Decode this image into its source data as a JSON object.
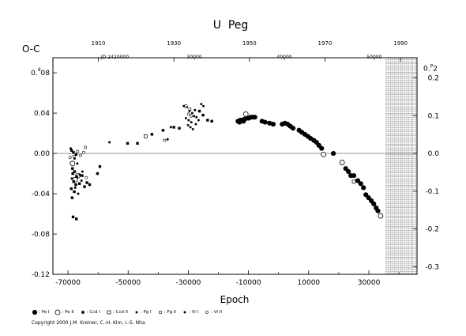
{
  "chart_data": {
    "type": "scatter",
    "title": "U  Peg",
    "ylabel": "O-C",
    "ylabel_unit": "d",
    "xlabel": "Epoch",
    "xlim": [
      -75000,
      46000
    ],
    "ylim": [
      -0.12,
      0.095
    ],
    "x_ticks": [
      "-70000",
      "-50000",
      "-30000",
      "-10000",
      "10000",
      "30000"
    ],
    "x_tick_values": [
      -70000,
      -50000,
      -30000,
      -10000,
      10000,
      30000
    ],
    "y_ticks": [
      "0.08",
      "0.04",
      "0.00",
      "-0.04",
      "-0.08",
      "-0.12"
    ],
    "y_tick_values": [
      0.08,
      0.04,
      0.0,
      -0.04,
      -0.08,
      -0.12
    ],
    "y_first_label_main": "0.",
    "y_first_label_sup": "d",
    "y_first_label_rest": "08",
    "top_year_ticks": [
      "1910",
      "1930",
      "1950",
      "1970",
      "1990"
    ],
    "top_year_epochs": [
      -59900,
      -34800,
      -9700,
      15400,
      40500
    ],
    "jd_label": "JD 2420000",
    "top_jd_ticks": [
      "30000",
      "40000",
      "50000"
    ],
    "top_jd_epochs": [
      -28000,
      1900,
      31800
    ],
    "right_scale_label_main": "0.",
    "right_scale_label_sup": "P",
    "right_scale_label_rest": "2",
    "right_ticks": [
      "0.2",
      "0.1",
      "0.0",
      "-0.1",
      "-0.2",
      "-0.3"
    ],
    "right_tick_values": [
      0.0749,
      0.0375,
      0.0,
      -0.0375,
      -0.0749,
      -0.1124
    ],
    "future_region_start": 35500,
    "series": [
      {
        "name": "Pe I",
        "symbol": "filled-circle-large",
        "points": [
          [
            -13500,
            0.032
          ],
          [
            -12700,
            0.033
          ],
          [
            -12000,
            0.033
          ],
          [
            -11300,
            0.034
          ],
          [
            -10600,
            0.035
          ],
          [
            -9900,
            0.035
          ],
          [
            -9300,
            0.036
          ],
          [
            -8600,
            0.036
          ],
          [
            -7900,
            0.036
          ],
          [
            -13000,
            0.031
          ],
          [
            -11700,
            0.032
          ],
          [
            -5500,
            0.032
          ],
          [
            -4500,
            0.031
          ],
          [
            -3000,
            0.03
          ],
          [
            -1800,
            0.029
          ],
          [
            1200,
            0.029
          ],
          [
            2100,
            0.03
          ],
          [
            3000,
            0.029
          ],
          [
            3900,
            0.027
          ],
          [
            4800,
            0.025
          ],
          [
            6800,
            0.023
          ],
          [
            7700,
            0.021
          ],
          [
            8700,
            0.019
          ],
          [
            9700,
            0.017
          ],
          [
            10600,
            0.015
          ],
          [
            11700,
            0.013
          ],
          [
            12600,
            0.011
          ],
          [
            13400,
            0.008
          ],
          [
            14300,
            0.005
          ],
          [
            18200,
            0.0
          ],
          [
            22300,
            -0.015
          ],
          [
            23200,
            -0.018
          ],
          [
            24000,
            -0.022
          ],
          [
            25000,
            -0.022
          ],
          [
            26300,
            -0.027
          ],
          [
            27300,
            -0.03
          ],
          [
            28200,
            -0.034
          ],
          [
            29000,
            -0.041
          ],
          [
            29900,
            -0.044
          ],
          [
            30800,
            -0.047
          ],
          [
            31600,
            -0.05
          ],
          [
            32400,
            -0.054
          ],
          [
            33000,
            -0.057
          ]
        ]
      },
      {
        "name": "Pe II",
        "symbol": "open-circle-large",
        "points": [
          [
            -10900,
            0.039
          ],
          [
            14900,
            -0.001
          ],
          [
            21100,
            -0.009
          ],
          [
            33900,
            -0.062
          ],
          [
            -68500,
            -0.01
          ],
          [
            -67600,
            -0.026
          ],
          [
            -66700,
            -0.022
          ]
        ]
      },
      {
        "name": "Ccd I",
        "symbol": "filled-square",
        "points": [
          [
            -68800,
            0.003
          ],
          [
            -68200,
            0.001
          ],
          [
            -67300,
            -0.001
          ],
          [
            -68500,
            -0.015
          ],
          [
            -67800,
            -0.018
          ],
          [
            -68400,
            -0.02
          ],
          [
            -67100,
            -0.023
          ],
          [
            -68100,
            -0.028
          ],
          [
            -67400,
            -0.031
          ],
          [
            -68900,
            -0.035
          ],
          [
            -67900,
            -0.038
          ],
          [
            -68600,
            -0.044
          ],
          [
            -68300,
            -0.063
          ],
          [
            -67200,
            -0.065
          ],
          [
            -66200,
            -0.03
          ],
          [
            -65300,
            -0.022
          ],
          [
            -64500,
            -0.033
          ],
          [
            -63700,
            -0.029
          ],
          [
            -62800,
            -0.031
          ],
          [
            -60200,
            -0.02
          ],
          [
            -59400,
            -0.013
          ],
          [
            -50200,
            0.01
          ],
          [
            -46900,
            0.01
          ],
          [
            -42100,
            0.019
          ],
          [
            -38400,
            0.023
          ],
          [
            -34800,
            0.026
          ],
          [
            -33000,
            0.025
          ],
          [
            -26300,
            0.042
          ],
          [
            -25100,
            0.038
          ],
          [
            -23600,
            0.033
          ],
          [
            -22200,
            0.032
          ]
        ]
      },
      {
        "name": "Ccd II",
        "symbol": "open-square",
        "points": [
          [
            -44200,
            0.017
          ],
          [
            25000,
            -0.028
          ]
        ]
      },
      {
        "name": "Pg I",
        "symbol": "small-filled",
        "points": [
          [
            -31500,
            0.047
          ],
          [
            -30500,
            0.046
          ],
          [
            -29600,
            0.042
          ],
          [
            -28700,
            0.04
          ],
          [
            -27800,
            0.043
          ],
          [
            -30800,
            0.035
          ],
          [
            -29900,
            0.033
          ],
          [
            -29000,
            0.031
          ],
          [
            -28100,
            0.037
          ],
          [
            -27300,
            0.036
          ],
          [
            -30100,
            0.028
          ],
          [
            -29300,
            0.026
          ],
          [
            -28500,
            0.024
          ],
          [
            -27500,
            0.029
          ],
          [
            -26600,
            0.033
          ],
          [
            -25700,
            0.049
          ],
          [
            -25000,
            0.047
          ]
        ]
      },
      {
        "name": "Pg II",
        "symbol": "small-open-square",
        "points": [
          [
            -30800,
            0.047
          ],
          [
            -29500,
            0.044
          ]
        ]
      },
      {
        "name": "Vi I",
        "symbol": "small-filled-dot",
        "points": [
          [
            -69100,
            0.005
          ],
          [
            -67800,
            -0.005
          ],
          [
            -66900,
            -0.01
          ],
          [
            -66100,
            -0.021
          ],
          [
            -65200,
            -0.018
          ],
          [
            -68700,
            -0.025
          ],
          [
            -67600,
            -0.034
          ],
          [
            -66600,
            -0.04
          ],
          [
            -65500,
            -0.027
          ],
          [
            -56200,
            0.011
          ],
          [
            -35800,
            0.026
          ],
          [
            -36900,
            0.014
          ]
        ]
      },
      {
        "name": "Vi II",
        "symbol": "small-open-circle",
        "points": [
          [
            -69300,
            -0.004
          ],
          [
            -68000,
            -0.003
          ],
          [
            -66800,
            0.002
          ],
          [
            -65800,
            -0.002
          ],
          [
            -64800,
            0.001
          ],
          [
            -64200,
            0.006
          ],
          [
            -63900,
            -0.024
          ],
          [
            -37900,
            0.013
          ],
          [
            -29900,
            0.039
          ],
          [
            -29100,
            0.037
          ]
        ]
      }
    ]
  },
  "legend": [
    {
      "symbol": "filled-circle-large",
      "label": ": Pe I"
    },
    {
      "symbol": "open-circle-large",
      "label": ": Pe II"
    },
    {
      "symbol": "filled-square",
      "label": ": Ccd I"
    },
    {
      "symbol": "open-square",
      "label": ": Ccd II"
    },
    {
      "symbol": "small-filled",
      "label": ": Pg I"
    },
    {
      "symbol": "small-open-square",
      "label": ": Pg II"
    },
    {
      "symbol": "small-filled-dot",
      "label": ": Vi I"
    },
    {
      "symbol": "small-open-circle",
      "label": ": Vi II"
    }
  ],
  "copyright": "Copyright 2000 J.M. Kreiner, C.-H. Kim, I.-S. Nha"
}
